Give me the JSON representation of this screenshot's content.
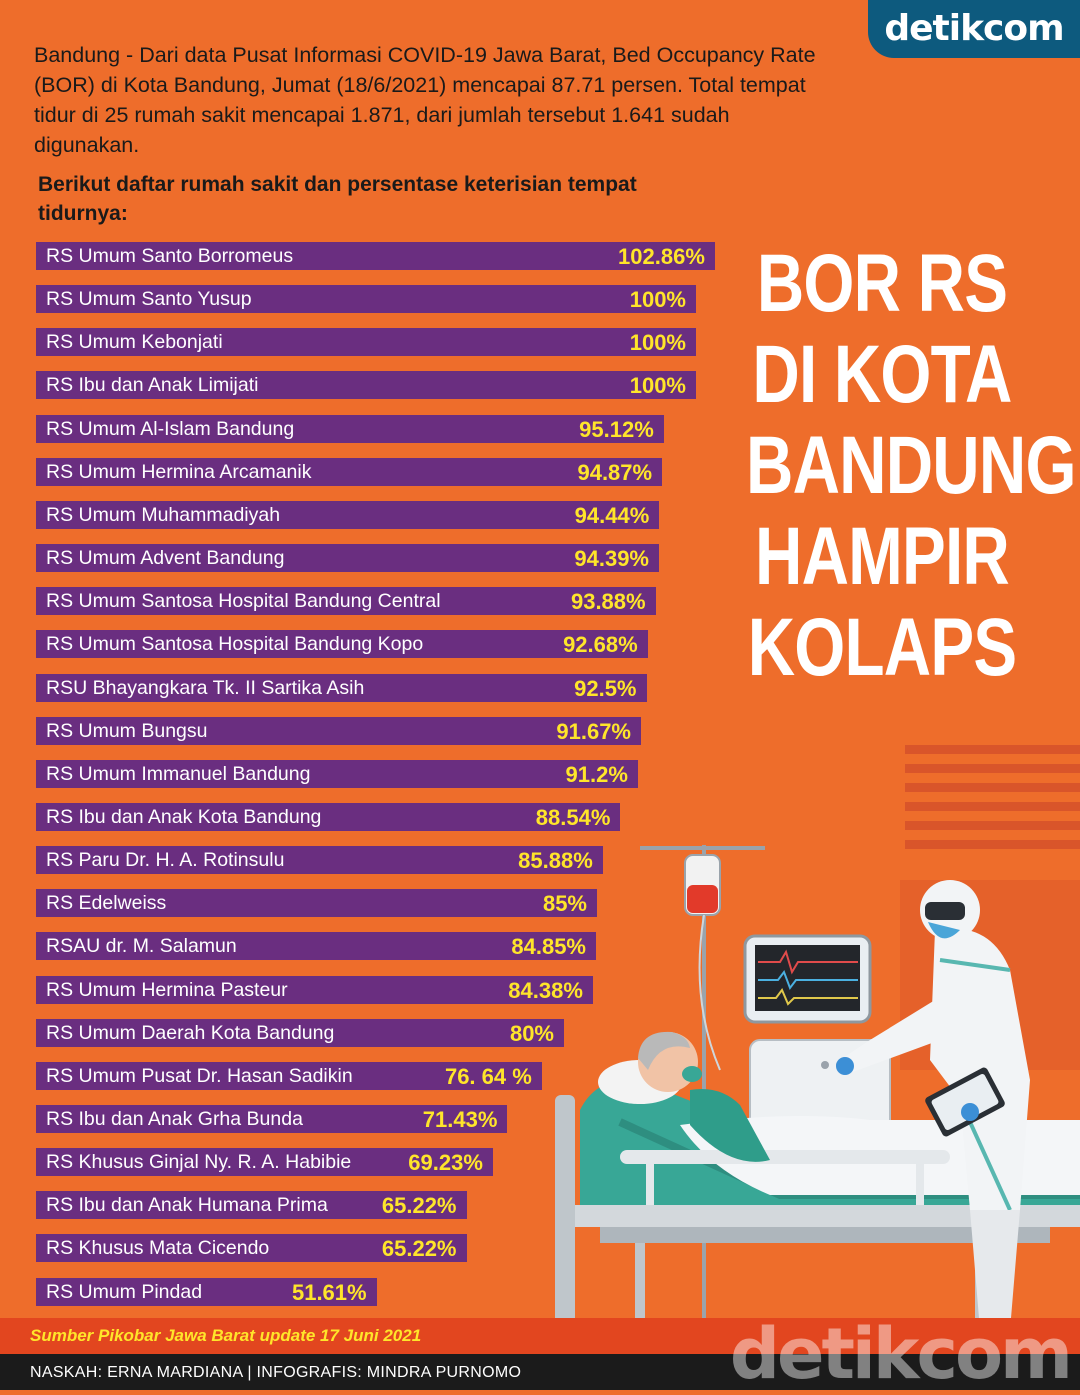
{
  "logo": "detikcom",
  "intro": "Bandung - Dari data Pusat Informasi COVID-19 Jawa Barat, Bed Occupancy Rate (BOR) di Kota Bandung, Jumat (18/6/2021) mencapai 87.71 persen. Total tempat tidur di 25 rumah sakit mencapai 1.871, dari jumlah tersebut 1.641 sudah digunakan.",
  "subhead": "Berikut daftar rumah sakit dan persentase keterisian tempat tidurnya:",
  "headline": [
    "BOR RS",
    "DI KOTA",
    "BANDUNG",
    "HAMPIR",
    "KOLAPS"
  ],
  "source": "Sumber Pikobar Jawa Barat update 17 Juni 2021",
  "credits": "NASKAH: ERNA MARDIANA |  INFOGRAFIS: MINDRA PURNOMO",
  "colors": {
    "background": "#ee6d2b",
    "bar": "#6a2e80",
    "value_text": "#ffe52a",
    "brand_blue": "#0d5a7e"
  },
  "chart_data": {
    "type": "bar",
    "orientation": "horizontal",
    "categories": [
      "RS Umum Santo Borromeus",
      " RS Umum Santo Yusup",
      "RS Umum Kebonjati",
      "RS Ibu dan Anak Limijati",
      "RS Umum Al-Islam Bandung",
      "RS Umum Hermina Arcamanik",
      "RS Umum Muhammadiyah",
      "RS Umum Advent Bandung",
      "RS Umum Santosa Hospital Bandung Central",
      "RS Umum Santosa Hospital Bandung Kopo",
      "RSU Bhayangkara Tk. II Sartika Asih",
      "RS Umum Bungsu",
      "RS Umum Immanuel Bandung",
      "RS Ibu dan Anak Kota Bandung",
      "RS Paru Dr. H. A. Rotinsulu",
      "RS Edelweiss",
      "RSAU dr. M. Salamun",
      "RS Umum Hermina Pasteur",
      "RS Umum Daerah Kota Bandung",
      "RS Umum Pusat Dr. Hasan Sadikin",
      "RS Ibu dan Anak Grha Bunda",
      "RS Khusus Ginjal Ny. R. A. Habibie",
      "RS Ibu dan Anak Humana Prima",
      "RS Khusus Mata Cicendo",
      "RS Umum Pindad"
    ],
    "values": [
      102.86,
      100,
      100,
      100,
      95.12,
      94.87,
      94.44,
      94.39,
      93.88,
      92.68,
      92.5,
      91.67,
      91.2,
      88.54,
      85.88,
      85,
      84.85,
      84.38,
      80,
      76.64,
      71.43,
      69.23,
      65.22,
      65.22,
      51.61
    ],
    "value_labels": [
      "102.86%",
      "100%",
      "100%",
      "100%",
      "95.12%",
      "94.87%",
      "94.44%",
      "94.39%",
      "93.88%",
      "92.68%",
      "92.5%",
      "91.67%",
      "91.2%",
      "88.54%",
      "85.88%",
      "85%",
      "84.85%",
      "84.38%",
      "80%",
      "76. 64 %",
      "71.43%",
      "69.23%",
      "65.22%",
      "65.22%",
      "51.61%"
    ],
    "unit": "%"
  }
}
